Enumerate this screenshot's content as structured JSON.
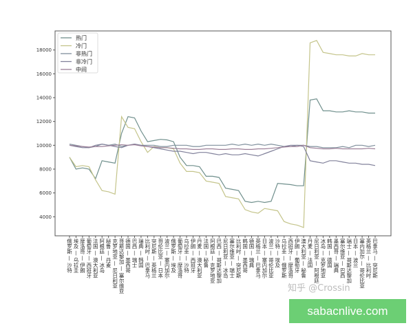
{
  "chart_data": {
    "type": "line",
    "title": "",
    "xlabel": "",
    "ylabel": "",
    "ylim": [
      2400,
      19600
    ],
    "yticks": [
      4000,
      6000,
      8000,
      10000,
      12000,
      14000,
      16000,
      18000
    ],
    "grid": false,
    "legend": "top-left",
    "categories": [
      "俄罗斯 — 沙特",
      "埃及 — 乌拉圭",
      "摩洛哥 — 伊朗",
      "葡萄牙 — 西班牙",
      "法国 — 澳大利亚",
      "阿根廷 — 冰岛",
      "秘鲁 — 丹麦",
      "克罗地亚 — 尼日利亚",
      "哥斯达黎加 — 塞尔维亚",
      "德国 — 墨西哥",
      "巴西 — 瑞士",
      "瑞典 — 韩国",
      "比利时 — 巴拿马",
      "突尼斯 — 英格兰",
      "哥伦比亚 — 日本",
      "波兰 — 塞内加尔",
      "俄罗斯 — 埃及",
      "葡萄牙 — 摩洛哥",
      "乌拉圭 — 沙特",
      "伊朗 — 西班牙",
      "丹麦 — 澳大利亚",
      "法国 — 秘鲁",
      "阿根廷 — 克罗地亚",
      "巴西 — 哥斯达黎加",
      "尼日利亚 — 冰岛",
      "塞尔维亚 — 瑞士",
      "比利时 — 突尼斯",
      "韩国 — 墨西哥",
      "德国 — 瑞典",
      "英格兰 — 巴拿马",
      "日本 — 塞内加尔",
      "波兰 — 哥伦比亚",
      "沙特 — 埃及",
      "乌拉圭 — 俄罗斯",
      "西班牙 — 摩洛哥",
      "伊朗 — 葡萄牙",
      "澳大利亚 — 秘鲁",
      "丹麦 — 法国",
      "尼日利亚 — 阿根廷",
      "冰岛 — 克罗地亚",
      "韩国 — 德国",
      "墨西哥 — 瑞典",
      "塞尔维亚 — 巴西",
      "瑞士 — 哥斯达黎加",
      "日本 — 波兰",
      "塞内加尔 — 哥伦比亚",
      "英格兰 — 比利时",
      "巴拿马 — 突尼斯"
    ],
    "series": [
      {
        "name": "热门",
        "color": "#6f8f8c",
        "values": [
          9000,
          8000,
          8100,
          8000,
          7200,
          8700,
          8600,
          8500,
          11000,
          12400,
          12300,
          11200,
          10300,
          10400,
          10500,
          10450,
          10300,
          9000,
          8300,
          8300,
          8200,
          7400,
          7400,
          7300,
          6400,
          6300,
          6200,
          5300,
          5200,
          5300,
          5200,
          5300,
          6800,
          6750,
          6700,
          6600,
          6600,
          13800,
          13900,
          12900,
          12900,
          12800,
          12800,
          12900,
          12800,
          12800,
          12700,
          12700
        ]
      },
      {
        "name": "冷门",
        "color": "#c4c48a",
        "values": [
          9000,
          8200,
          8300,
          8200,
          7100,
          6200,
          6100,
          5900,
          12400,
          11500,
          11400,
          10300,
          9400,
          9900,
          9800,
          9800,
          9700,
          8500,
          7800,
          7800,
          7700,
          7000,
          6900,
          6800,
          5700,
          5600,
          5500,
          4600,
          4400,
          4300,
          4700,
          4600,
          4500,
          3600,
          3400,
          3300,
          3100,
          18600,
          18800,
          17800,
          17700,
          17600,
          17600,
          17500,
          17500,
          17700,
          17600,
          17600
        ]
      },
      {
        "name": "非热门",
        "color": "#7f8f9c",
        "values": [
          10100,
          10000,
          9900,
          9800,
          9900,
          10100,
          10000,
          10100,
          9900,
          10000,
          10100,
          10000,
          10000,
          10000,
          9900,
          9900,
          10000,
          10000,
          10000,
          9900,
          9900,
          10000,
          10000,
          10000,
          10000,
          10100,
          10000,
          10100,
          10000,
          10100,
          10000,
          10100,
          10000,
          9900,
          9900,
          10000,
          10000,
          9900,
          9900,
          9800,
          9800,
          9800,
          9900,
          9800,
          10000,
          10000,
          9900,
          10000
        ]
      },
      {
        "name": "非冷门",
        "color": "#80809a",
        "values": [
          10000,
          9900,
          9800,
          9800,
          10000,
          10100,
          10000,
          9900,
          9800,
          10000,
          10100,
          10000,
          9900,
          9800,
          9700,
          9600,
          9500,
          9500,
          9400,
          9300,
          9400,
          9400,
          9300,
          9200,
          9300,
          9200,
          9200,
          9300,
          9200,
          9100,
          9300,
          9500,
          9700,
          9900,
          10000,
          10000,
          9900,
          8700,
          8600,
          8500,
          8700,
          8700,
          8600,
          8500,
          8500,
          8400,
          8400,
          8300
        ]
      },
      {
        "name": "中间",
        "color": "#9c7f98",
        "values": [
          10000,
          9950,
          9900,
          9850,
          9900,
          9900,
          9950,
          10000,
          10050,
          10000,
          10050,
          9950,
          9900,
          9850,
          9800,
          9800,
          9750,
          9700,
          9700,
          9650,
          9650,
          9700,
          9700,
          9650,
          9650,
          9700,
          9700,
          9650,
          9650,
          9700,
          9700,
          9750,
          9800,
          9850,
          9900,
          9900,
          10000,
          9800,
          9750,
          9700,
          9700,
          9750,
          9700,
          9700,
          9700,
          9700,
          9750,
          9700
        ]
      }
    ]
  },
  "watermark": "知乎 @Crossin",
  "banner": "sabacnlive.com"
}
